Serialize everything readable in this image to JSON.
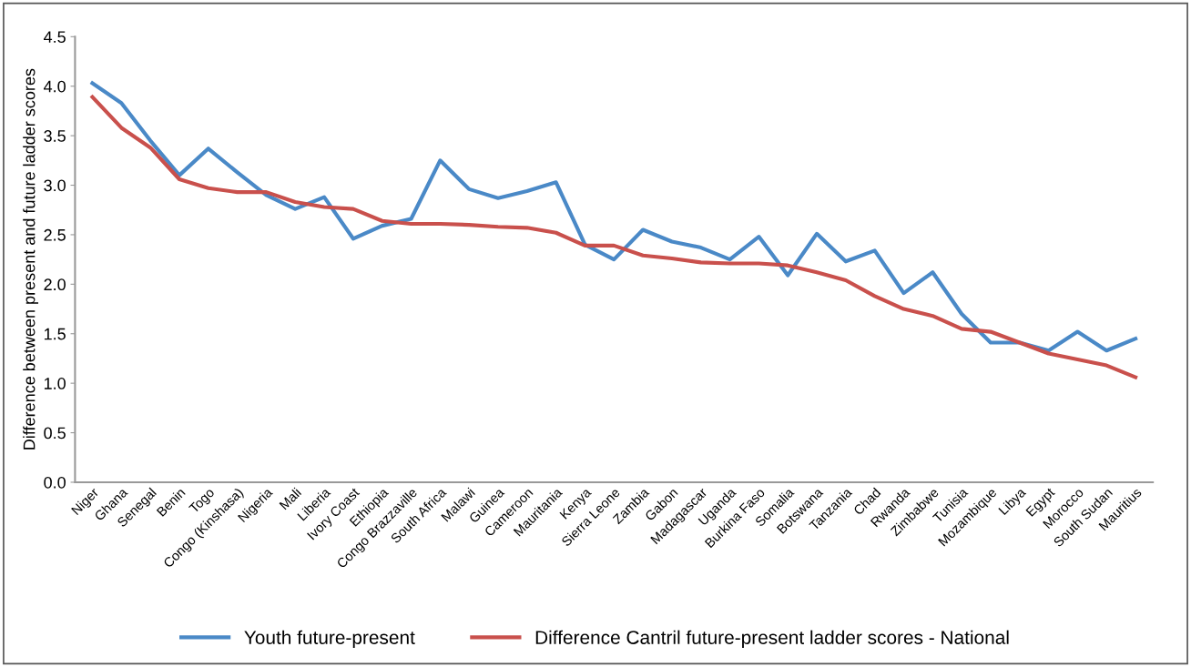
{
  "chart_data": {
    "type": "line",
    "ylabel": "Difference between present and future ladder scores",
    "categories": [
      "Niger",
      "Ghana",
      "Senegal",
      "Benin",
      "Togo",
      "Congo (Kinshasa)",
      "Nigeria",
      "Mali",
      "Liberia",
      "Ivory Coast",
      "Ethiopia",
      "Congo Brazzaville",
      "South Africa",
      "Malawi",
      "Guinea",
      "Cameroon",
      "Mauritania",
      "Kenya",
      "Sierra Leone",
      "Zambia",
      "Gabon",
      "Madagascar",
      "Uganda",
      "Burkina Faso",
      "Somalia",
      "Botswana",
      "Tanzania",
      "Chad",
      "Rwanda",
      "Zimbabwe",
      "Tunisia",
      "Mozambique",
      "Libya",
      "Egypt",
      "Morocco",
      "South Sudan",
      "Mauritius"
    ],
    "series": [
      {
        "name": "Youth future-present",
        "color": "#4a89c7",
        "values": [
          4.03,
          3.83,
          3.45,
          3.1,
          3.37,
          3.13,
          2.9,
          2.76,
          2.88,
          2.46,
          2.59,
          2.66,
          3.25,
          2.96,
          2.87,
          2.94,
          3.03,
          2.4,
          2.25,
          2.55,
          2.43,
          2.37,
          2.25,
          2.48,
          2.09,
          2.51,
          2.23,
          2.34,
          1.91,
          2.12,
          1.7,
          1.41,
          1.41,
          1.33,
          1.52,
          1.33,
          1.45
        ]
      },
      {
        "name": "Difference Cantril future-present ladder scores - National",
        "color": "#c9504c",
        "values": [
          3.89,
          3.58,
          3.38,
          3.06,
          2.97,
          2.93,
          2.93,
          2.83,
          2.78,
          2.76,
          2.64,
          2.61,
          2.61,
          2.6,
          2.58,
          2.57,
          2.52,
          2.39,
          2.39,
          2.29,
          2.26,
          2.22,
          2.21,
          2.21,
          2.19,
          2.12,
          2.04,
          1.88,
          1.75,
          1.68,
          1.55,
          1.52,
          1.41,
          1.3,
          1.24,
          1.18,
          1.06
        ]
      }
    ],
    "ylim": [
      0,
      4.5
    ],
    "yticks": [
      {
        "value": 0,
        "label": "0.0"
      },
      {
        "value": 0.5,
        "label": "0.5"
      },
      {
        "value": 1,
        "label": "1.0"
      },
      {
        "value": 1.5,
        "label": "1.5"
      },
      {
        "value": 2,
        "label": "2.0"
      },
      {
        "value": 2.5,
        "label": "2.5"
      },
      {
        "value": 3,
        "label": "3.0"
      },
      {
        "value": 3.5,
        "label": "3.5"
      },
      {
        "value": 4,
        "label": "4.0"
      },
      {
        "value": 4.5,
        "label": "4.5"
      }
    ],
    "grid": false,
    "legend": "bottom",
    "marker": "none",
    "line_style": "solid"
  }
}
